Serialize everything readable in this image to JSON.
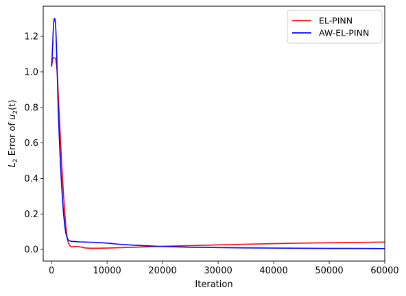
{
  "chart_data": {
    "type": "line",
    "title": "",
    "xlabel": "Iteration",
    "ylabel_parts": {
      "main": "L",
      "sub1": "2",
      "mid": " Error of ",
      "var": "u",
      "sub2": "2",
      "end": "(t)"
    },
    "xlim": [
      -1500,
      60000
    ],
    "ylim": [
      -0.065,
      1.37
    ],
    "xticks": [
      0,
      10000,
      20000,
      30000,
      40000,
      50000,
      60000
    ],
    "xtick_labels": [
      "0",
      "10000",
      "20000",
      "30000",
      "40000",
      "50000",
      "60000"
    ],
    "yticks": [
      0.0,
      0.2,
      0.4,
      0.6,
      0.8,
      1.0,
      1.2
    ],
    "ytick_labels": [
      "0.0",
      "0.2",
      "0.4",
      "0.6",
      "0.8",
      "1.0",
      "1.2"
    ],
    "grid": false,
    "legend_position": "top-right",
    "series": [
      {
        "name": "EL-PINN",
        "color": "#ff0000",
        "x": [
          0,
          150,
          300,
          450,
          600,
          750,
          900,
          1050,
          1200,
          1400,
          1600,
          1800,
          2000,
          2200,
          2400,
          2600,
          2800,
          3000,
          3200,
          3400,
          3600,
          3800,
          4000,
          4500,
          5000,
          5500,
          6000,
          7000,
          8000,
          10000,
          12000,
          15000,
          20000,
          25000,
          30000,
          35000,
          40000,
          45000,
          50000,
          55000,
          60000
        ],
        "y": [
          1.03,
          1.06,
          1.08,
          1.08,
          1.08,
          1.07,
          1.04,
          0.98,
          0.88,
          0.75,
          0.62,
          0.5,
          0.39,
          0.29,
          0.2,
          0.12,
          0.07,
          0.04,
          0.025,
          0.018,
          0.016,
          0.016,
          0.017,
          0.017,
          0.016,
          0.012,
          0.009,
          0.007,
          0.007,
          0.008,
          0.01,
          0.013,
          0.018,
          0.022,
          0.026,
          0.03,
          0.033,
          0.036,
          0.038,
          0.04,
          0.042
        ]
      },
      {
        "name": "AW-EL-PINN",
        "color": "#0000ff",
        "x": [
          0,
          100,
          200,
          300,
          400,
          500,
          600,
          700,
          800,
          900,
          1000,
          1100,
          1200,
          1400,
          1600,
          1800,
          2000,
          2200,
          2400,
          2600,
          2800,
          3000,
          3200,
          3400,
          3600,
          3800,
          4000,
          4500,
          5000,
          6000,
          8000,
          10000,
          12000,
          15000,
          20000,
          25000,
          30000,
          35000,
          40000,
          45000,
          50000,
          55000,
          60000
        ],
        "y": [
          1.03,
          1.08,
          1.15,
          1.23,
          1.28,
          1.3,
          1.3,
          1.28,
          1.22,
          1.13,
          1.02,
          0.91,
          0.8,
          0.63,
          0.49,
          0.37,
          0.27,
          0.19,
          0.13,
          0.09,
          0.065,
          0.055,
          0.05,
          0.047,
          0.046,
          0.045,
          0.045,
          0.044,
          0.043,
          0.042,
          0.04,
          0.036,
          0.03,
          0.024,
          0.017,
          0.013,
          0.011,
          0.009,
          0.008,
          0.007,
          0.006,
          0.006,
          0.005
        ]
      }
    ]
  }
}
